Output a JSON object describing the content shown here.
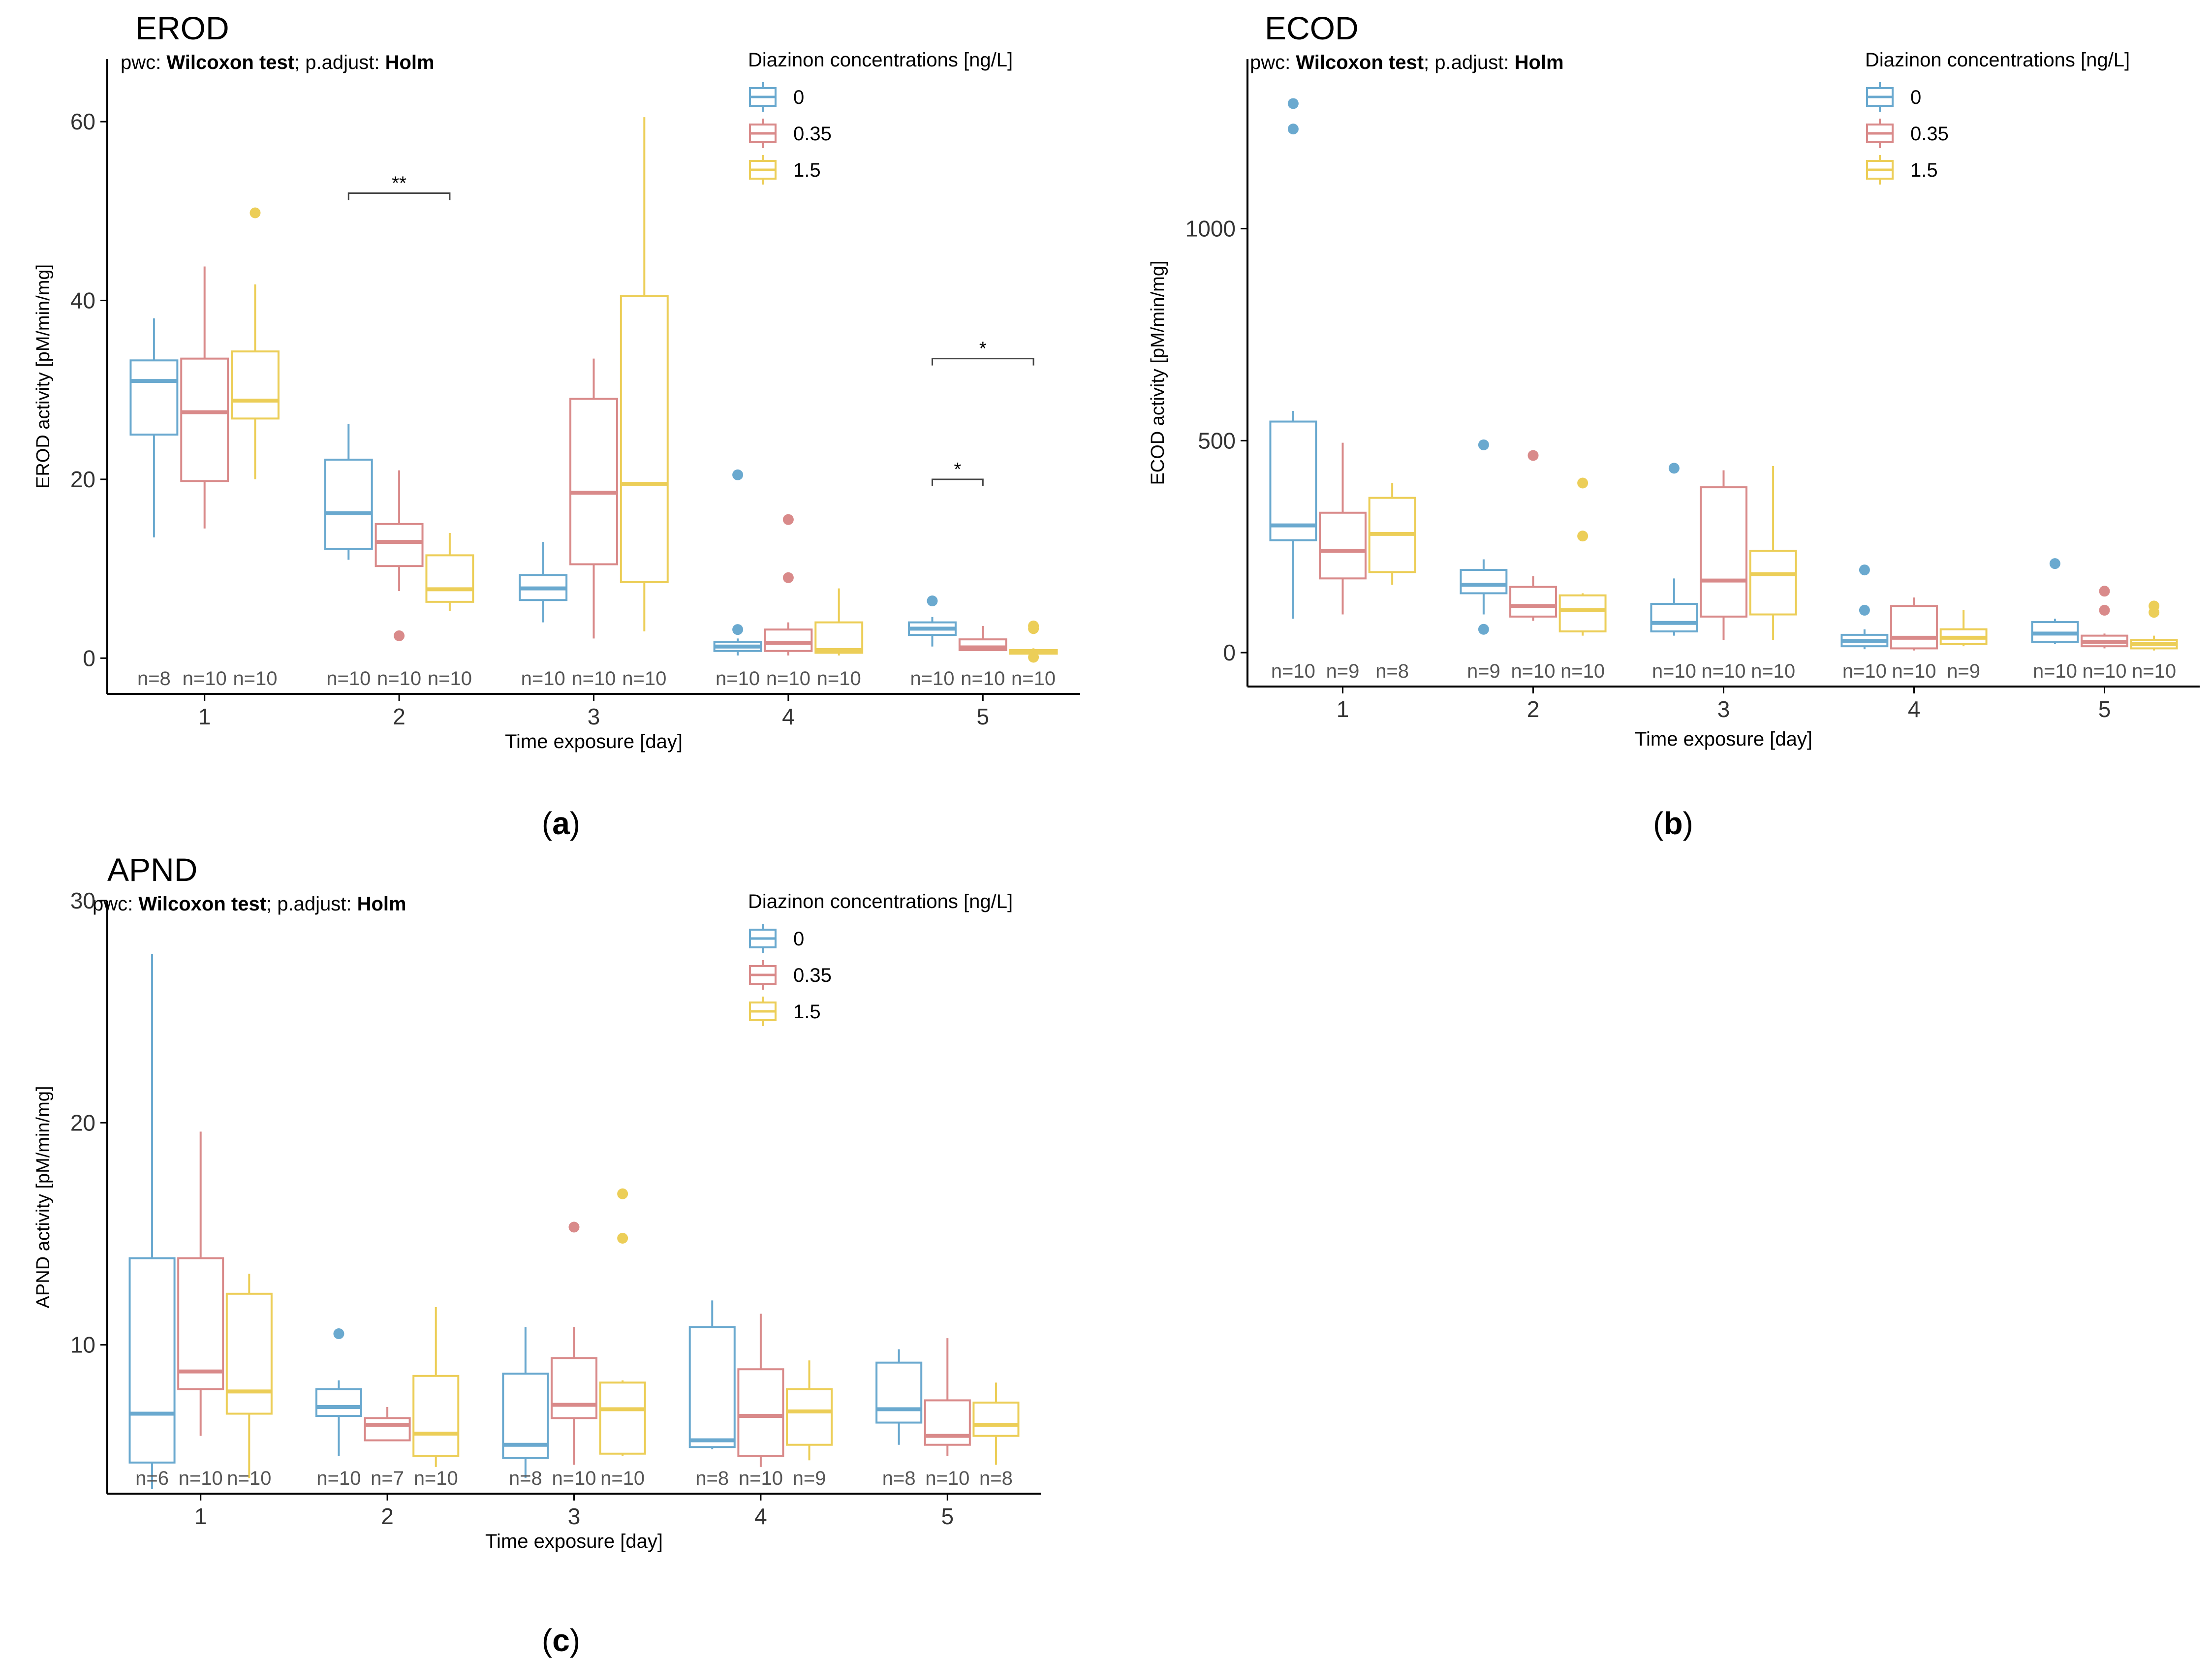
{
  "figure": {
    "panel_labels": [
      "(a)",
      "(b)",
      "(c)"
    ],
    "colors": {
      "c0": "#6aa9cf",
      "c035": "#d98a8a",
      "c15": "#ecce58",
      "axis": "#000000",
      "text": "#333333"
    }
  },
  "chart_data": [
    {
      "type": "box",
      "panel": "(a)",
      "title": "EROD",
      "subtitle_prefix": "pwc: ",
      "subtitle_test": "Wilcoxon test",
      "subtitle_mid": "; p.adjust: ",
      "subtitle_adj": "Holm",
      "xlabel": "Time exposure [day]",
      "ylabel": "EROD activity [pM/min/mg]",
      "ylim": [
        -4,
        67
      ],
      "yticks": [
        0,
        20,
        40,
        60
      ],
      "categories": [
        "1",
        "2",
        "3",
        "4",
        "5"
      ],
      "legend_title": "Diazinon concentrations [ng/L]",
      "series": [
        {
          "name": "0",
          "color": "#6aa9cf",
          "boxes": [
            {
              "lw": 13.5,
              "q1": 25,
              "med": 31,
              "q3": 33.3,
              "uw": 38,
              "out": []
            },
            {
              "lw": 11,
              "q1": 12.2,
              "med": 16.2,
              "q3": 22.2,
              "uw": 26.2,
              "out": []
            },
            {
              "lw": 4,
              "q1": 6.5,
              "med": 7.8,
              "q3": 9.3,
              "uw": 13,
              "out": []
            },
            {
              "lw": 0.3,
              "q1": 0.8,
              "med": 1.3,
              "q3": 1.8,
              "uw": 2.2,
              "out": [
                3.2,
                20.5
              ]
            },
            {
              "lw": 1.3,
              "q1": 2.6,
              "med": 3.3,
              "q3": 4,
              "uw": 4.6,
              "out": [
                6.4
              ]
            }
          ],
          "n": [
            "n=8",
            "n=10",
            "n=10",
            "n=10",
            "n=10"
          ]
        },
        {
          "name": "0.35",
          "color": "#d98a8a",
          "boxes": [
            {
              "lw": 14.5,
              "q1": 19.8,
              "med": 27.5,
              "q3": 33.5,
              "uw": 43.8,
              "out": []
            },
            {
              "lw": 7.5,
              "q1": 10.3,
              "med": 13,
              "q3": 15,
              "uw": 21,
              "out": [
                2.5
              ]
            },
            {
              "lw": 2.2,
              "q1": 10.5,
              "med": 18.5,
              "q3": 29,
              "uw": 33.5,
              "out": []
            },
            {
              "lw": 0.3,
              "q1": 0.8,
              "med": 1.7,
              "q3": 3.2,
              "uw": 4,
              "out": [
                9,
                15.5
              ]
            },
            {
              "lw": 0.8,
              "q1": 0.9,
              "med": 1.2,
              "q3": 2.1,
              "uw": 3.6,
              "out": []
            }
          ],
          "n": [
            "n=10",
            "n=10",
            "n=10",
            "n=10",
            "n=10"
          ]
        },
        {
          "name": "1.5",
          "color": "#ecce58",
          "boxes": [
            {
              "lw": 20,
              "q1": 26.8,
              "med": 28.8,
              "q3": 34.3,
              "uw": 41.8,
              "out": [
                49.8
              ]
            },
            {
              "lw": 5.3,
              "q1": 6.3,
              "med": 7.7,
              "q3": 11.5,
              "uw": 14,
              "out": []
            },
            {
              "lw": 3,
              "q1": 8.5,
              "med": 19.5,
              "q3": 40.5,
              "uw": 60.5,
              "out": []
            },
            {
              "lw": 0.3,
              "q1": 0.6,
              "med": 0.9,
              "q3": 4,
              "uw": 7.8,
              "out": []
            },
            {
              "lw": 0.3,
              "q1": 0.5,
              "med": 0.7,
              "q3": 0.9,
              "uw": 1.1,
              "out": [
                0.1,
                3.3,
                3.6
              ]
            }
          ],
          "n": [
            "n=10",
            "n=10",
            "n=10",
            "n=10",
            "n=10"
          ]
        }
      ],
      "brackets": [
        {
          "day": 2,
          "from": 0,
          "to": 2,
          "y": 52,
          "label": "**"
        },
        {
          "day": 5,
          "from": 0,
          "to": 1,
          "y": 20,
          "label": "*"
        },
        {
          "day": 5,
          "from": 0,
          "to": 2,
          "y": 33.5,
          "label": "*"
        }
      ]
    },
    {
      "type": "box",
      "panel": "(b)",
      "title": "ECOD",
      "subtitle_prefix": "pwc: ",
      "subtitle_test": "Wilcoxon test",
      "subtitle_mid": "; p.adjust: ",
      "subtitle_adj": "Holm",
      "xlabel": "Time exposure [day]",
      "ylabel": "ECOD activity [pM/min/mg]",
      "ylim": [
        -80,
        1400
      ],
      "yticks": [
        0,
        500,
        1000
      ],
      "categories": [
        "1",
        "2",
        "3",
        "4",
        "5"
      ],
      "legend_title": "Diazinon concentrations [ng/L]",
      "series": [
        {
          "name": "0",
          "color": "#6aa9cf",
          "boxes": [
            {
              "lw": 80,
              "q1": 265,
              "med": 300,
              "q3": 545,
              "uw": 570,
              "out": [
                1235,
                1295
              ]
            },
            {
              "lw": 90,
              "q1": 140,
              "med": 160,
              "q3": 195,
              "uw": 220,
              "out": [
                55,
                490
              ]
            },
            {
              "lw": 40,
              "q1": 50,
              "med": 70,
              "q3": 115,
              "uw": 175,
              "out": [
                435
              ]
            },
            {
              "lw": 8,
              "q1": 15,
              "med": 28,
              "q3": 42,
              "uw": 55,
              "out": [
                100,
                195
              ]
            },
            {
              "lw": 20,
              "q1": 25,
              "med": 45,
              "q3": 72,
              "uw": 80,
              "out": [
                210
              ]
            }
          ],
          "n": [
            "n=10",
            "n=9",
            "n=10",
            "n=10",
            "n=10"
          ]
        },
        {
          "name": "0.35",
          "color": "#d98a8a",
          "boxes": [
            {
              "lw": 90,
              "q1": 175,
              "med": 240,
              "q3": 330,
              "uw": 495,
              "out": []
            },
            {
              "lw": 75,
              "q1": 85,
              "med": 110,
              "q3": 155,
              "uw": 180,
              "out": [
                465
              ]
            },
            {
              "lw": 30,
              "q1": 85,
              "med": 170,
              "q3": 390,
              "uw": 430,
              "out": []
            },
            {
              "lw": 5,
              "q1": 10,
              "med": 35,
              "q3": 110,
              "uw": 130,
              "out": []
            },
            {
              "lw": 10,
              "q1": 15,
              "med": 25,
              "q3": 40,
              "uw": 45,
              "out": [
                100,
                145
              ]
            }
          ],
          "n": [
            "n=9",
            "n=10",
            "n=10",
            "n=10",
            "n=10"
          ]
        },
        {
          "name": "1.5",
          "color": "#ecce58",
          "boxes": [
            {
              "lw": 160,
              "q1": 190,
              "med": 280,
              "q3": 365,
              "uw": 400,
              "out": []
            },
            {
              "lw": 40,
              "q1": 50,
              "med": 100,
              "q3": 135,
              "uw": 140,
              "out": [
                275,
                400
              ]
            },
            {
              "lw": 30,
              "q1": 90,
              "med": 185,
              "q3": 240,
              "uw": 440,
              "out": []
            },
            {
              "lw": 15,
              "q1": 20,
              "med": 35,
              "q3": 55,
              "uw": 100,
              "out": []
            },
            {
              "lw": 5,
              "q1": 10,
              "med": 20,
              "q3": 30,
              "uw": 40,
              "out": [
                95,
                110
              ]
            }
          ],
          "n": [
            "n=8",
            "n=10",
            "n=10",
            "n=9",
            "n=10"
          ]
        }
      ],
      "brackets": []
    },
    {
      "type": "box",
      "panel": "(c)",
      "title": "APND",
      "subtitle_prefix": "pwc: ",
      "subtitle_test": "Wilcoxon test",
      "subtitle_mid": "; p.adjust: ",
      "subtitle_adj": "Holm",
      "xlabel": "Time exposure [day]",
      "ylabel": "APND activity [pM/min/mg]",
      "ylim": [
        3.3,
        30
      ],
      "yticks": [
        10,
        20,
        30
      ],
      "categories": [
        "1",
        "2",
        "3",
        "4",
        "5"
      ],
      "legend_title": "Diazinon concentrations [ng/L]",
      "series": [
        {
          "name": "0",
          "color": "#6aa9cf",
          "boxes": [
            {
              "lw": 3.5,
              "q1": 4.7,
              "med": 6.9,
              "q3": 13.9,
              "uw": 27.6,
              "out": []
            },
            {
              "lw": 5,
              "q1": 6.8,
              "med": 7.2,
              "q3": 8,
              "uw": 8.4,
              "out": [
                10.5
              ]
            },
            {
              "lw": 4,
              "q1": 4.9,
              "med": 5.5,
              "q3": 8.7,
              "uw": 10.8,
              "out": []
            },
            {
              "lw": 5.3,
              "q1": 5.4,
              "med": 5.7,
              "q3": 10.8,
              "uw": 12,
              "out": []
            },
            {
              "lw": 5.5,
              "q1": 6.5,
              "med": 7.1,
              "q3": 9.2,
              "uw": 9.8,
              "out": []
            }
          ],
          "n": [
            "n=6",
            "n=10",
            "n=8",
            "n=8",
            "n=8"
          ]
        },
        {
          "name": "0.35",
          "color": "#d98a8a",
          "boxes": [
            {
              "lw": 5.9,
              "q1": 8,
              "med": 8.8,
              "q3": 13.9,
              "uw": 19.6,
              "out": []
            },
            {
              "lw": 5.7,
              "q1": 5.7,
              "med": 6.4,
              "q3": 6.7,
              "uw": 7.2,
              "out": []
            },
            {
              "lw": 4.6,
              "q1": 6.7,
              "med": 7.3,
              "q3": 9.4,
              "uw": 10.8,
              "out": [
                15.3
              ]
            },
            {
              "lw": 4.5,
              "q1": 5,
              "med": 6.8,
              "q3": 8.9,
              "uw": 11.4,
              "out": []
            },
            {
              "lw": 5,
              "q1": 5.5,
              "med": 5.9,
              "q3": 7.5,
              "uw": 10.3,
              "out": []
            }
          ],
          "n": [
            "n=10",
            "n=7",
            "n=10",
            "n=10",
            "n=10"
          ]
        },
        {
          "name": "1.5",
          "color": "#ecce58",
          "boxes": [
            {
              "lw": 4,
              "q1": 6.9,
              "med": 7.9,
              "q3": 12.3,
              "uw": 13.2,
              "out": []
            },
            {
              "lw": 4.5,
              "q1": 5,
              "med": 6,
              "q3": 8.6,
              "uw": 11.7,
              "out": []
            },
            {
              "lw": 5,
              "q1": 5.1,
              "med": 7.1,
              "q3": 8.3,
              "uw": 8.4,
              "out": [
                14.8,
                16.8
              ]
            },
            {
              "lw": 4.8,
              "q1": 5.5,
              "med": 7,
              "q3": 8,
              "uw": 9.3,
              "out": []
            },
            {
              "lw": 4.6,
              "q1": 5.9,
              "med": 6.4,
              "q3": 7.4,
              "uw": 8.3,
              "out": []
            }
          ],
          "n": [
            "n=10",
            "n=10",
            "n=10",
            "n=9",
            "n=8"
          ]
        }
      ],
      "brackets": []
    }
  ]
}
